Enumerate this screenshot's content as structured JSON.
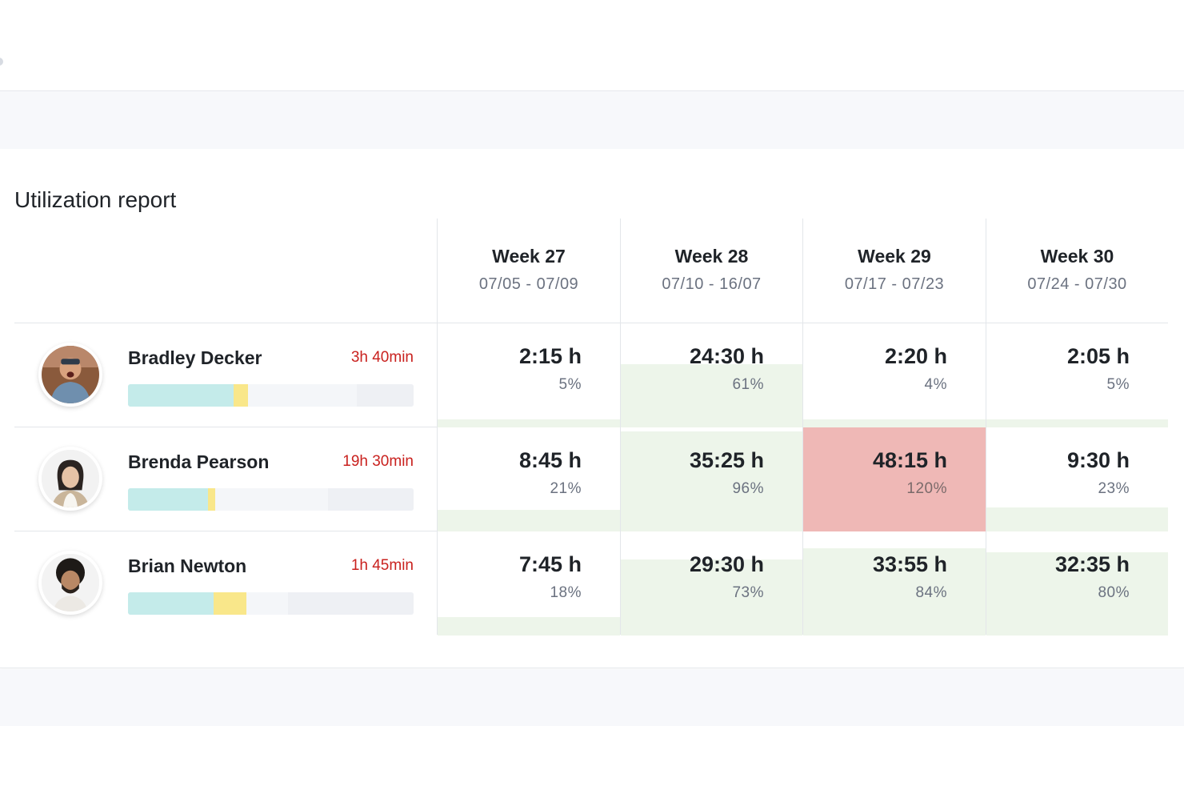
{
  "report": {
    "title": "Utilization report"
  },
  "weeks": [
    {
      "name": "Week 27",
      "range": "07/05 - 07/09"
    },
    {
      "name": "Week 28",
      "range": "07/10 - 16/07"
    },
    {
      "name": "Week 29",
      "range": "07/17 - 07/23"
    },
    {
      "name": "Week 30",
      "range": "07/24 - 07/30"
    }
  ],
  "people": [
    {
      "name": "Bradley Decker",
      "overtime": "3h 40min",
      "bar": {
        "billable": 0.37,
        "non_billable": 0.05,
        "scheduled": 0.8
      },
      "cells": [
        {
          "hours": "2:15 h",
          "percent": "5%",
          "utilization": 0.05
        },
        {
          "hours": "24:30 h",
          "percent": "61%",
          "utilization": 0.61
        },
        {
          "hours": "2:20 h",
          "percent": "4%",
          "utilization": 0.04
        },
        {
          "hours": "2:05 h",
          "percent": "5%",
          "utilization": 0.05
        }
      ]
    },
    {
      "name": "Brenda Pearson",
      "overtime": "19h 30min",
      "bar": {
        "billable": 0.28,
        "non_billable": 0.025,
        "scheduled": 0.7
      },
      "cells": [
        {
          "hours": "8:45 h",
          "percent": "21%",
          "utilization": 0.21
        },
        {
          "hours": "35:25 h",
          "percent": "96%",
          "utilization": 0.96
        },
        {
          "hours": "48:15 h",
          "percent": "120%",
          "utilization": 1.2
        },
        {
          "hours": "9:30 h",
          "percent": "23%",
          "utilization": 0.23
        }
      ]
    },
    {
      "name": "Brian Newton",
      "overtime": "1h 45min",
      "bar": {
        "billable": 0.3,
        "non_billable": 0.115,
        "scheduled": 0.56
      },
      "cells": [
        {
          "hours": "7:45 h",
          "percent": "18%",
          "utilization": 0.18
        },
        {
          "hours": "29:30 h",
          "percent": "73%",
          "utilization": 0.73
        },
        {
          "hours": "33:55 h",
          "percent": "84%",
          "utilization": 0.84
        },
        {
          "hours": "32:35 h",
          "percent": "80%",
          "utilization": 0.8
        }
      ]
    }
  ],
  "colors": {
    "overtime": "#c9211e",
    "billable": "#c4ebea",
    "non_billable": "#f9e78a",
    "utilization_fill": "#edf5ea",
    "over_capacity": "#efb8b6"
  }
}
